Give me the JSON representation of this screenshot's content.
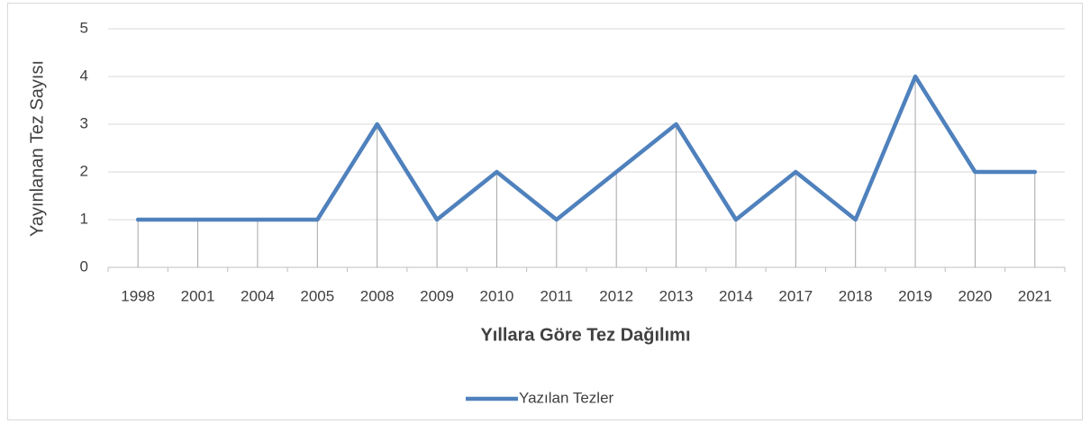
{
  "chart_data": {
    "type": "line",
    "x_label": "Yıllara Göre Tez Dağılımı",
    "y_label": "Yayınlanan Tez Sayısı",
    "categories": [
      "1998",
      "2001",
      "2004",
      "2005",
      "2008",
      "2009",
      "2010",
      "2011",
      "2012",
      "2013",
      "2014",
      "2017",
      "2018",
      "2019",
      "2020",
      "2021"
    ],
    "series": [
      {
        "name": "Yazılan Tezler",
        "color": "#4f81bd",
        "values": [
          1,
          1,
          1,
          1,
          3,
          1,
          2,
          1,
          2,
          3,
          1,
          2,
          1,
          4,
          2,
          2
        ]
      }
    ],
    "ylim": [
      0,
      5
    ],
    "yticks": [
      0,
      1,
      2,
      3,
      4,
      5
    ],
    "grid": true,
    "drop_lines": true,
    "legend": "bottom"
  }
}
